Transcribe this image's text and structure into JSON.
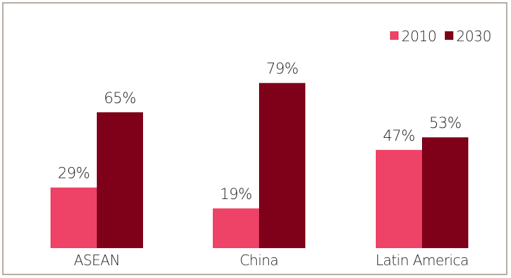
{
  "chart_data": {
    "type": "bar",
    "title": "",
    "xlabel": "",
    "ylabel": "",
    "categories": [
      "ASEAN",
      "China",
      "Latin America"
    ],
    "series": [
      {
        "name": "2010",
        "color": "#ee4266",
        "values": [
          29,
          19,
          47
        ],
        "labels": [
          "29%",
          "19%",
          "47%"
        ]
      },
      {
        "name": "2030",
        "color": "#7f0019",
        "values": [
          65,
          79,
          53
        ],
        "labels": [
          "65%",
          "79%",
          "53%"
        ]
      }
    ],
    "value_unit": "%",
    "ylim": [
      0,
      100
    ],
    "legend_position": "top-right",
    "grid": false
  }
}
